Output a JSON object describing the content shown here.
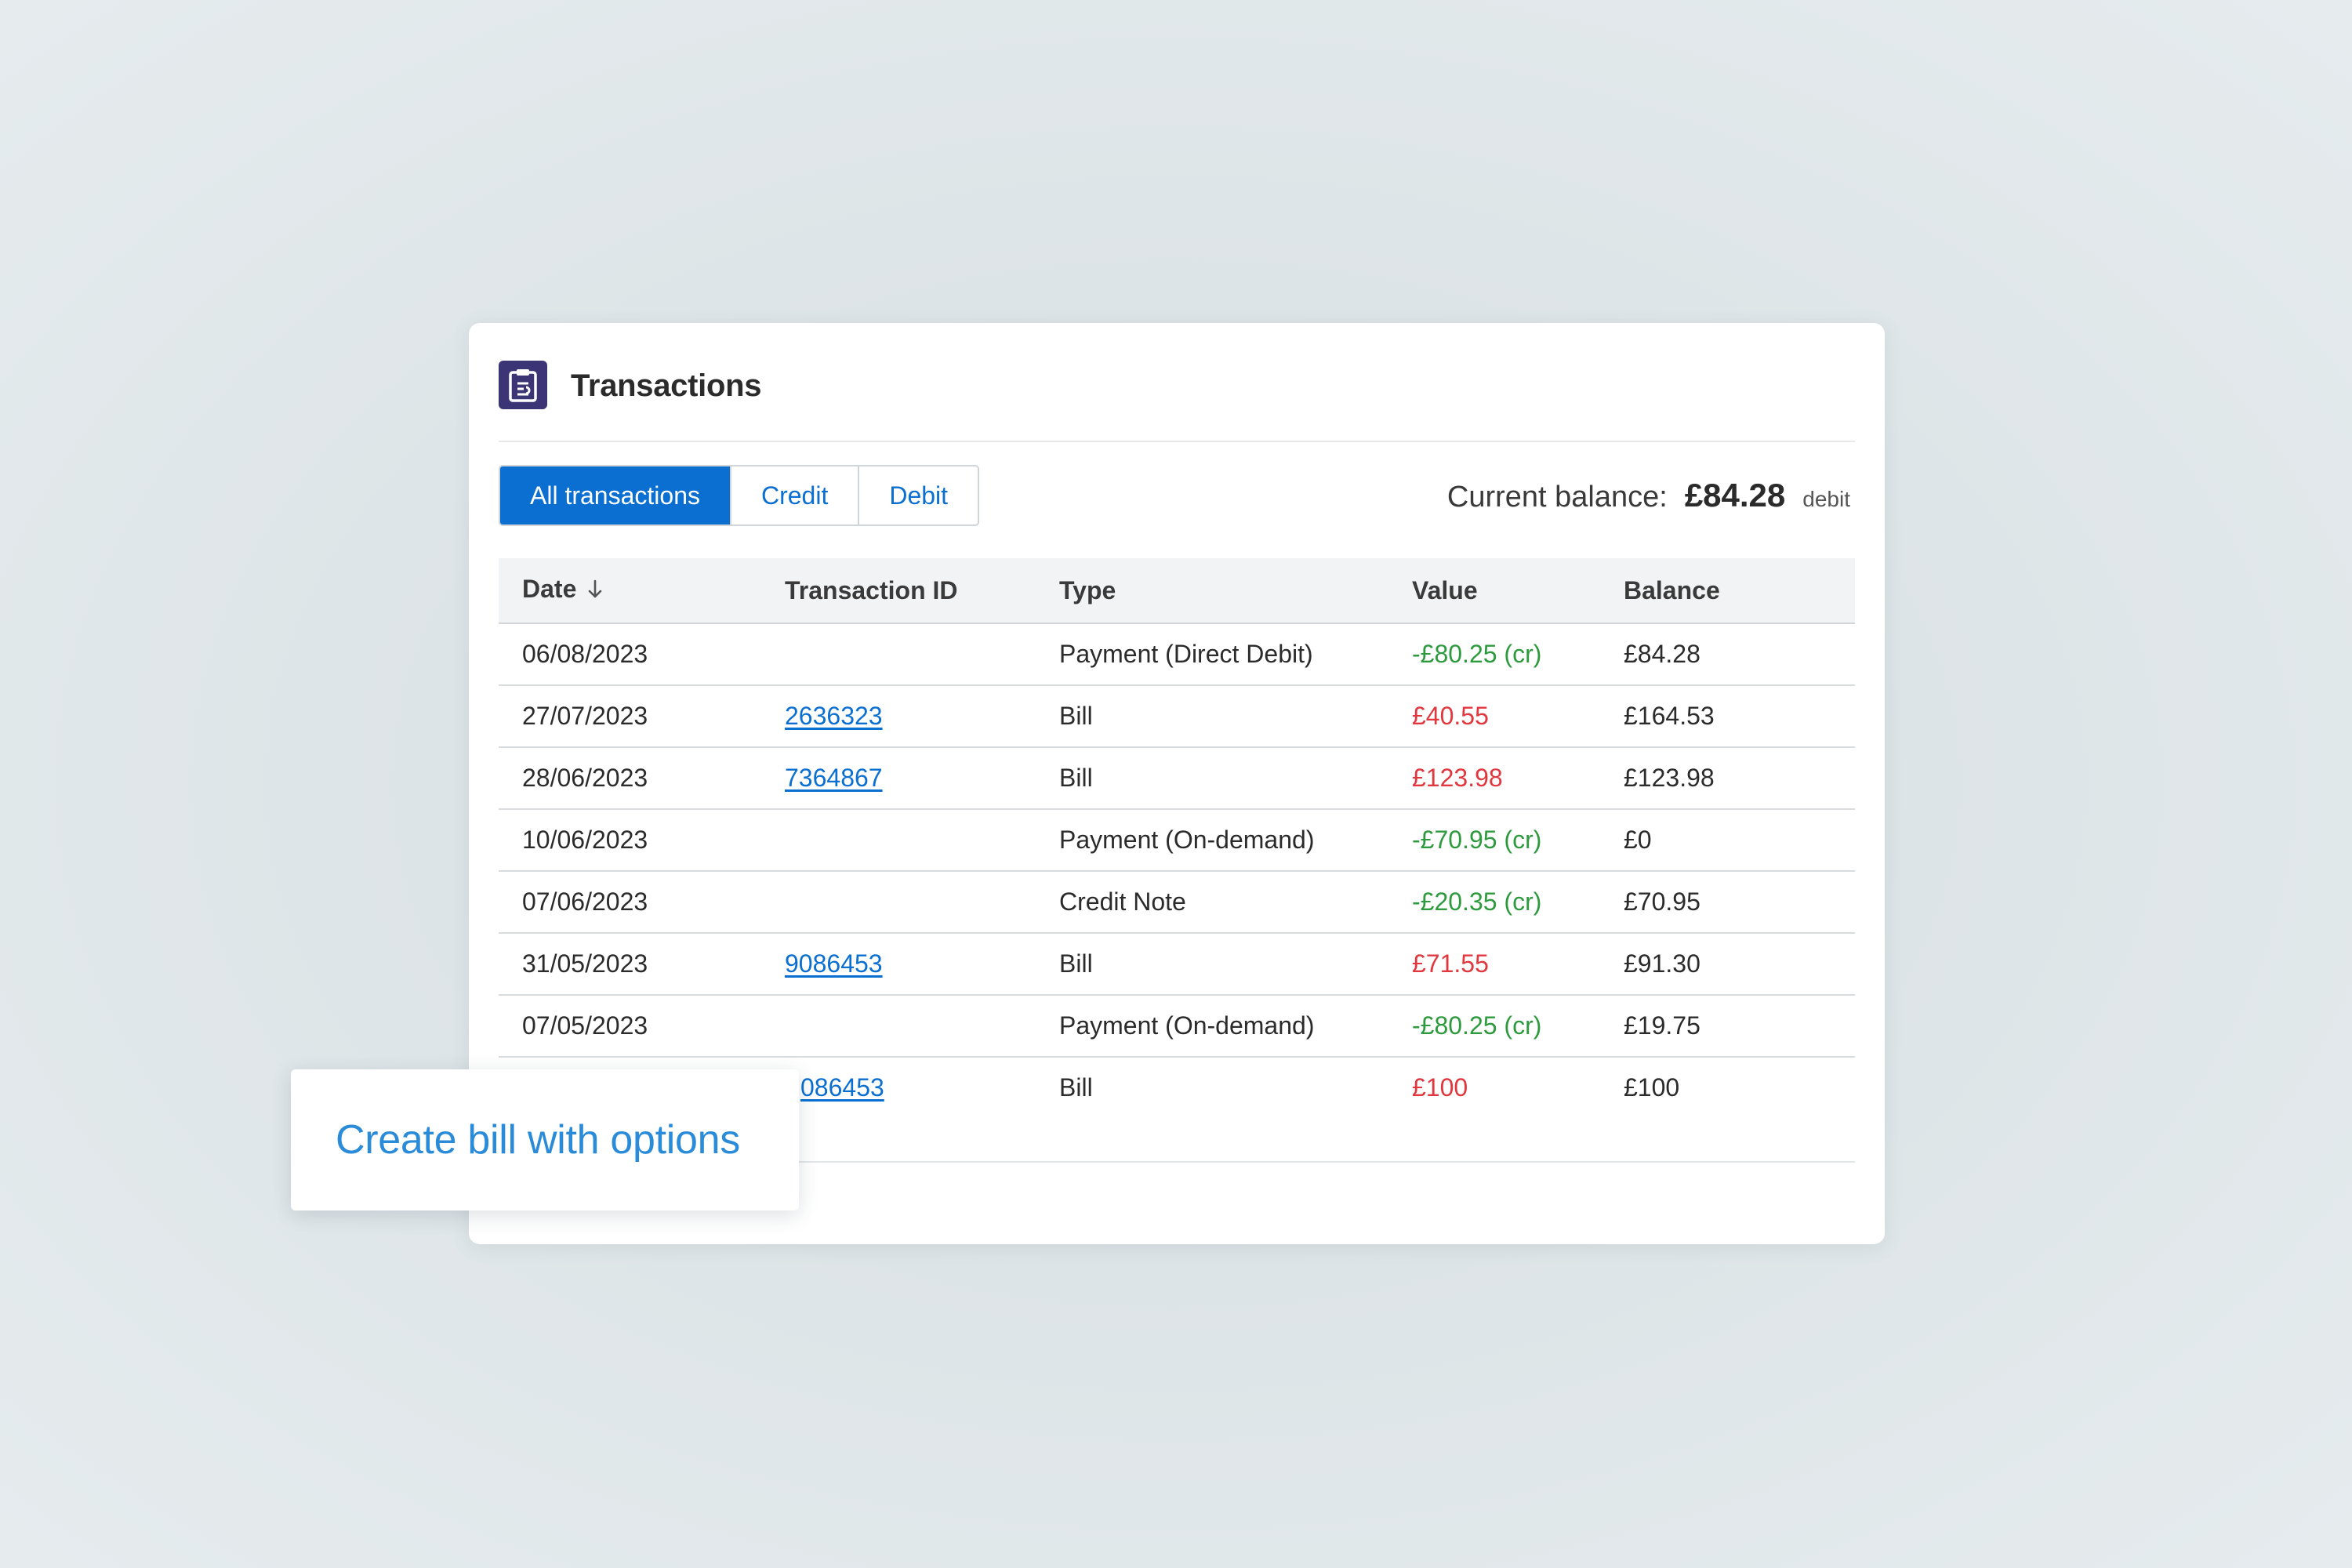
{
  "header": {
    "title": "Transactions",
    "icon": "clipboard-icon",
    "icon_color": "#3b3475"
  },
  "filters": {
    "tabs": [
      {
        "label": "All transactions",
        "active": true
      },
      {
        "label": "Credit",
        "active": false
      },
      {
        "label": "Debit",
        "active": false
      }
    ],
    "accent": "#0a6fd1"
  },
  "balance": {
    "label": "Current balance:",
    "amount": "£84.28",
    "kind": "debit"
  },
  "table": {
    "columns": [
      "Date",
      "Transaction ID",
      "Type",
      "Value",
      "Balance"
    ],
    "sort_icon": "arrow-down-icon",
    "rows": [
      {
        "date": "06/08/2023",
        "id": "",
        "type": "Payment (Direct Debit)",
        "value": "-£80.25 (cr)",
        "balance": "£84.28"
      },
      {
        "date": "27/07/2023",
        "id": "2636323",
        "type": "Bill",
        "value": "£40.55",
        "balance": "£164.53"
      },
      {
        "date": "28/06/2023",
        "id": "7364867",
        "type": "Bill",
        "value": "£123.98",
        "balance": "£123.98"
      },
      {
        "date": "10/06/2023",
        "id": "",
        "type": "Payment (On-demand)",
        "value": "-£70.95 (cr)",
        "balance": "£0"
      },
      {
        "date": "07/06/2023",
        "id": "",
        "type": "Credit Note",
        "value": "-£20.35 (cr)",
        "balance": "£70.95"
      },
      {
        "date": "31/05/2023",
        "id": "9086453",
        "type": "Bill",
        "value": "£71.55",
        "balance": "£91.30"
      },
      {
        "date": "07/05/2023",
        "id": "",
        "type": "Payment (On-demand)",
        "value": "-£80.25 (cr)",
        "balance": "£19.75"
      },
      {
        "date": "",
        "id": "086453",
        "type": "Bill",
        "value": "£100",
        "balance": "£100"
      }
    ],
    "credit_color": "#2e9a3e",
    "debit_color": "#e0383e"
  },
  "popup": {
    "action_label": "Create bill with options"
  }
}
